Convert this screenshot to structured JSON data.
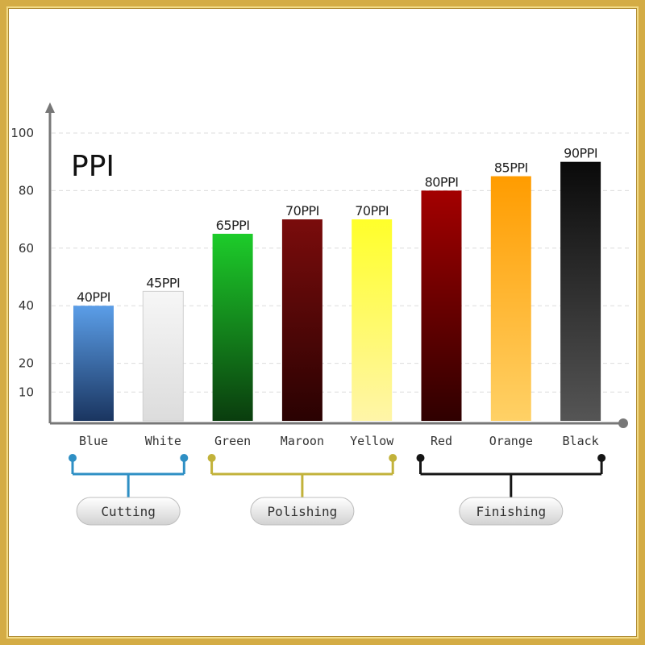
{
  "chart_data": {
    "type": "bar",
    "title": "PPI",
    "categories": [
      "Blue",
      "White",
      "Green",
      "Maroon",
      "Yellow",
      "Red",
      "Orange",
      "Black"
    ],
    "values": [
      40,
      45,
      65,
      70,
      70,
      80,
      85,
      90
    ],
    "data_labels": [
      "40PPI",
      "45PPI",
      "65PPI",
      "70PPI",
      "70PPI",
      "80PPI",
      "85PPI",
      "90PPI"
    ],
    "y_ticks": [
      10,
      20,
      40,
      60,
      80,
      100
    ],
    "ylim": [
      0,
      100
    ],
    "grid": true,
    "xlabel": "",
    "ylabel": "",
    "bar_gradients": [
      [
        "#5b9ee8",
        "#1a3560"
      ],
      [
        "#f6f6f6",
        "#dcdcdc"
      ],
      [
        "#1dcc2a",
        "#0a3d0e"
      ],
      [
        "#7a0c0c",
        "#2a0202"
      ],
      [
        "#ffff2a",
        "#fff5a8"
      ],
      [
        "#a30000",
        "#2f0000"
      ],
      [
        "#ff9c00",
        "#ffd166"
      ],
      [
        "#0a0a0a",
        "#555555"
      ]
    ],
    "groups": [
      {
        "label": "Cutting",
        "members": [
          "Blue",
          "White"
        ],
        "color": "#2e8fc4"
      },
      {
        "label": "Polishing",
        "members": [
          "Green",
          "Maroon",
          "Yellow"
        ],
        "color": "#c2b23a"
      },
      {
        "label": "Finishing",
        "members": [
          "Red",
          "Orange",
          "Black"
        ],
        "color": "#151515"
      }
    ]
  }
}
